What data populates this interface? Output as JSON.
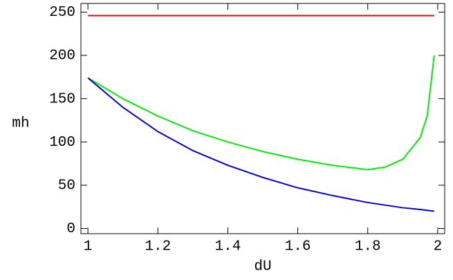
{
  "chart_data": {
    "type": "line",
    "x_label": "dU",
    "y_label": "mh",
    "x": [
      1,
      1.1,
      1.2,
      1.3,
      1.4,
      1.5,
      1.6,
      1.7,
      1.8,
      1.85,
      1.9,
      1.95,
      1.97,
      1.99
    ],
    "series": [
      {
        "color": "#ff0000",
        "values": [
          246,
          246,
          246,
          246,
          246,
          246,
          246,
          246,
          246,
          246,
          246,
          246,
          246,
          246
        ]
      },
      {
        "color": "#00ee00",
        "values": [
          174,
          150,
          130,
          113,
          100,
          89,
          80,
          73,
          68,
          71,
          80,
          105,
          130,
          200
        ]
      },
      {
        "color": "#0000dd",
        "values": [
          174,
          140,
          112,
          90,
          73,
          59,
          47,
          38,
          30,
          27,
          24,
          22,
          21,
          20
        ]
      }
    ],
    "xlim": [
      0.98,
      2.02
    ],
    "ylim": [
      -6,
      260
    ],
    "xticks": [
      1,
      1.2,
      1.4,
      1.6,
      1.8,
      2
    ],
    "yticks": [
      0,
      50,
      100,
      150,
      200,
      250
    ]
  }
}
